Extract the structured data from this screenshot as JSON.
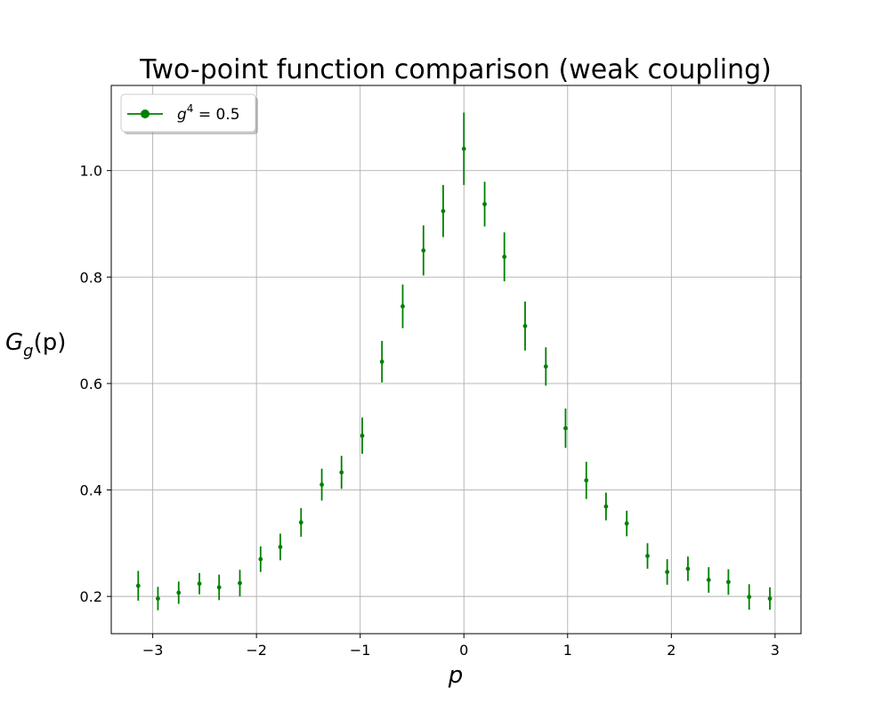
{
  "chart_data": {
    "type": "scatter",
    "title": "Two-point function comparison (weak coupling)",
    "xlabel": "p",
    "ylabel_main": "G",
    "ylabel_sub": "g",
    "ylabel_arg": "(p)",
    "xlim": [
      -3.4,
      3.25
    ],
    "ylim": [
      0.13,
      1.16
    ],
    "xticks": [
      -3,
      -2,
      -1,
      0,
      1,
      2,
      3
    ],
    "xtick_labels": [
      "−3",
      "−2",
      "−1",
      "0",
      "1",
      "2",
      "3"
    ],
    "yticks": [
      0.2,
      0.4,
      0.6,
      0.8,
      1.0
    ],
    "ytick_labels": [
      "0.2",
      "0.4",
      "0.6",
      "0.8",
      "1.0"
    ],
    "grid": true,
    "legend_position": "top-left",
    "series": [
      {
        "name": "g^4 = 0.5",
        "legend_label_main": "g",
        "legend_label_sup": "4",
        "legend_label_rest": " = 0.5",
        "color": "#008000",
        "points": [
          {
            "x": -3.14,
            "y": 0.22,
            "err": 0.028
          },
          {
            "x": -2.95,
            "y": 0.196,
            "err": 0.022
          },
          {
            "x": -2.75,
            "y": 0.207,
            "err": 0.021
          },
          {
            "x": -2.55,
            "y": 0.224,
            "err": 0.02
          },
          {
            "x": -2.36,
            "y": 0.217,
            "err": 0.024
          },
          {
            "x": -2.16,
            "y": 0.225,
            "err": 0.025
          },
          {
            "x": -1.96,
            "y": 0.27,
            "err": 0.024
          },
          {
            "x": -1.77,
            "y": 0.293,
            "err": 0.025
          },
          {
            "x": -1.57,
            "y": 0.339,
            "err": 0.027
          },
          {
            "x": -1.37,
            "y": 0.41,
            "err": 0.03
          },
          {
            "x": -1.18,
            "y": 0.433,
            "err": 0.031
          },
          {
            "x": -0.98,
            "y": 0.502,
            "err": 0.034
          },
          {
            "x": -0.79,
            "y": 0.641,
            "err": 0.039
          },
          {
            "x": -0.59,
            "y": 0.745,
            "err": 0.041
          },
          {
            "x": -0.39,
            "y": 0.85,
            "err": 0.047
          },
          {
            "x": -0.2,
            "y": 0.924,
            "err": 0.049
          },
          {
            "x": 0.0,
            "y": 1.041,
            "err": 0.068
          },
          {
            "x": 0.2,
            "y": 0.937,
            "err": 0.042
          },
          {
            "x": 0.39,
            "y": 0.838,
            "err": 0.046
          },
          {
            "x": 0.59,
            "y": 0.708,
            "err": 0.046
          },
          {
            "x": 0.79,
            "y": 0.632,
            "err": 0.036
          },
          {
            "x": 0.98,
            "y": 0.516,
            "err": 0.037
          },
          {
            "x": 1.18,
            "y": 0.418,
            "err": 0.035
          },
          {
            "x": 1.37,
            "y": 0.369,
            "err": 0.026
          },
          {
            "x": 1.57,
            "y": 0.337,
            "err": 0.024
          },
          {
            "x": 1.77,
            "y": 0.276,
            "err": 0.024
          },
          {
            "x": 1.96,
            "y": 0.246,
            "err": 0.024
          },
          {
            "x": 2.16,
            "y": 0.252,
            "err": 0.023
          },
          {
            "x": 2.36,
            "y": 0.231,
            "err": 0.024
          },
          {
            "x": 2.55,
            "y": 0.227,
            "err": 0.024
          },
          {
            "x": 2.75,
            "y": 0.199,
            "err": 0.024
          },
          {
            "x": 2.95,
            "y": 0.196,
            "err": 0.021
          }
        ]
      }
    ]
  }
}
